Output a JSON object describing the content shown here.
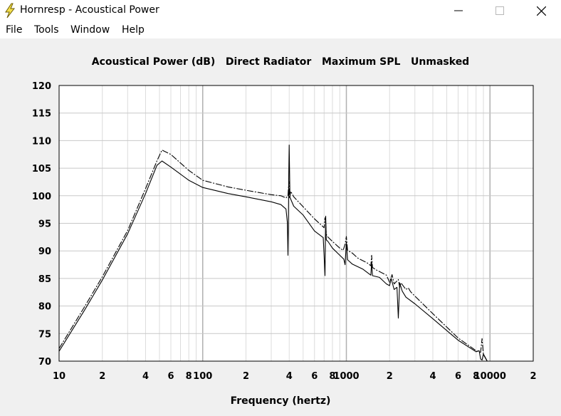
{
  "window": {
    "title": "Hornresp - Acoustical Power",
    "controls": [
      "minimize",
      "maximize",
      "close"
    ]
  },
  "menu": [
    "File",
    "Tools",
    "Window",
    "Help"
  ],
  "chart_title": "Acoustical Power (dB)   Direct Radiator   Maximum SPL   Unmasked",
  "chart_data": {
    "type": "line",
    "title": "Acoustical Power (dB)   Direct Radiator   Maximum SPL   Unmasked",
    "xlabel": "Frequency (hertz)",
    "ylabel": "",
    "xscale": "log",
    "xlim": [
      10,
      20000
    ],
    "ylim": [
      70,
      120
    ],
    "grid": true,
    "legend": "none",
    "y_ticks": [
      "120",
      "115",
      "110",
      "105",
      "100",
      "95",
      "90",
      "85",
      "80",
      "75",
      "70"
    ],
    "x_ticks": [
      {
        "v": 10,
        "label": "10"
      },
      {
        "v": 20,
        "label": "2"
      },
      {
        "v": 40,
        "label": "4"
      },
      {
        "v": 60,
        "label": "6"
      },
      {
        "v": 80,
        "label": "8"
      },
      {
        "v": 100,
        "label": "100"
      },
      {
        "v": 200,
        "label": "2"
      },
      {
        "v": 400,
        "label": "4"
      },
      {
        "v": 600,
        "label": "6"
      },
      {
        "v": 800,
        "label": "8"
      },
      {
        "v": 1000,
        "label": "1000"
      },
      {
        "v": 2000,
        "label": "2"
      },
      {
        "v": 4000,
        "label": "4"
      },
      {
        "v": 6000,
        "label": "6"
      },
      {
        "v": 8000,
        "label": "8"
      },
      {
        "v": 10000,
        "label": "10000"
      },
      {
        "v": 20000,
        "label": "2"
      }
    ],
    "series": [
      {
        "style": "dash-dot",
        "x": [
          10,
          15,
          20,
          30,
          40,
          48,
          52,
          60,
          80,
          100,
          150,
          200,
          300,
          350,
          380,
          392,
          398,
          402,
          410,
          430,
          500,
          600,
          700,
          710,
          718,
          725,
          745,
          800,
          900,
          950,
          980,
          1000,
          1020,
          1100,
          1200,
          1400,
          1480,
          1500,
          1520,
          1600,
          1900,
          2000,
          2080,
          2150,
          2300,
          2350,
          2400,
          2600,
          2700,
          2800,
          3000,
          4000,
          6000,
          8000,
          8600,
          8800,
          9000,
          9800
        ],
        "y": [
          72.3,
          79.8,
          85.3,
          93.7,
          101.3,
          106.3,
          108.3,
          107.5,
          104.6,
          102.8,
          101.6,
          101.0,
          100.2,
          100.0,
          99.6,
          100.0,
          102.6,
          99.5,
          100.8,
          99.8,
          98.0,
          95.8,
          94.2,
          96.0,
          95.0,
          93.0,
          92.5,
          91.7,
          90.5,
          90.1,
          91.2,
          92.6,
          90.1,
          89.6,
          88.7,
          87.8,
          87.3,
          89.2,
          87.0,
          86.6,
          85.6,
          84.3,
          85.7,
          84.0,
          84.8,
          83.4,
          84.2,
          83.0,
          83.3,
          82.6,
          81.8,
          78.6,
          74.2,
          71.9,
          71.6,
          74.1,
          71.2,
          69.5
        ]
      },
      {
        "style": "solid",
        "x": [
          10,
          15,
          20,
          30,
          40,
          48,
          52,
          60,
          80,
          100,
          150,
          200,
          300,
          350,
          380,
          388,
          392,
          395,
          397,
          400,
          405,
          430,
          500,
          600,
          690,
          700,
          710,
          718,
          725,
          745,
          800,
          900,
          960,
          980,
          1000,
          1020,
          1100,
          1300,
          1480,
          1500,
          1520,
          1700,
          1900,
          2000,
          2050,
          2150,
          2250,
          2300,
          2350,
          2450,
          2600,
          3000,
          4000,
          6000,
          8000,
          8400,
          8600,
          8800,
          9000,
          9800
        ],
        "y": [
          71.8,
          79.2,
          84.7,
          93.1,
          100.4,
          105.5,
          106.3,
          105.2,
          102.8,
          101.5,
          100.4,
          99.8,
          98.9,
          98.4,
          97.6,
          95.2,
          89.2,
          94.5,
          103.8,
          109.2,
          99.7,
          98.1,
          96.5,
          93.6,
          92.4,
          89.0,
          85.5,
          96.3,
          92.0,
          91.7,
          90.5,
          89.2,
          88.5,
          87.5,
          91.6,
          88.4,
          87.6,
          86.7,
          85.6,
          88.0,
          85.5,
          85.2,
          84.0,
          83.7,
          85.0,
          83.0,
          83.4,
          77.8,
          84.2,
          82.7,
          81.6,
          80.4,
          77.7,
          73.8,
          71.7,
          71.9,
          70.4,
          70.2,
          71.3,
          69.5
        ]
      }
    ]
  }
}
